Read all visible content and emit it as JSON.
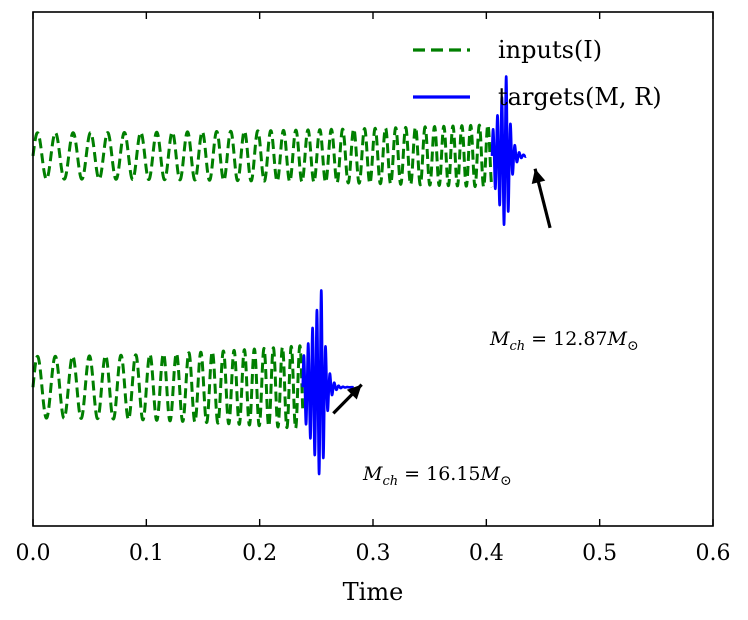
{
  "chart_data": {
    "type": "line",
    "xlabel": "Time",
    "ylabel": "",
    "xlim": [
      0.0,
      0.6
    ],
    "ylim": [
      -1.0,
      1.0
    ],
    "x_ticks": [
      "0.0",
      "0.1",
      "0.2",
      "0.3",
      "0.4",
      "0.5",
      "0.6"
    ],
    "legend": {
      "placement": "top-right",
      "entries": [
        {
          "label": "inputs(I)",
          "style": "dashed",
          "color": "#007f00"
        },
        {
          "label": "targets(M, R)",
          "style": "solid",
          "color": "#0000ff"
        }
      ]
    },
    "series": [
      {
        "name": "inputs(I)",
        "waveform": "upper",
        "color": "#007f00",
        "style": "dashed",
        "t_start": 0.0,
        "t_end": 0.405,
        "offset": 0.44,
        "amplitude": 0.09
      },
      {
        "name": "targets(M, R)",
        "waveform": "upper",
        "color": "#0000ff",
        "style": "solid",
        "t_start": 0.405,
        "t_end": 0.435,
        "peak_time": 0.418,
        "offset": 0.44,
        "amplitude": 0.32
      },
      {
        "name": "inputs(I)",
        "waveform": "lower",
        "color": "#007f00",
        "style": "dashed",
        "t_start": 0.0,
        "t_end": 0.238,
        "offset": -0.46,
        "amplitude": 0.12
      },
      {
        "name": "targets(M, R)",
        "waveform": "lower",
        "color": "#0000ff",
        "style": "solid",
        "t_start": 0.238,
        "t_end": 0.283,
        "peak_time": 0.255,
        "offset": -0.46,
        "amplitude": 0.39
      }
    ],
    "annotations": [
      {
        "text_main": "M",
        "text_sub": "ch",
        "text_eq": " = 12.87",
        "text_msym": "M",
        "text_sun": "⊙",
        "point_to": [
          0.443,
          0.39
        ],
        "text_at": [
          0.398,
          0.02
        ]
      },
      {
        "text_main": "M",
        "text_sub": "ch",
        "text_eq": " = 16.15",
        "text_msym": "M",
        "text_sun": "⊙",
        "point_to": [
          0.29,
          -0.45
        ],
        "text_at": [
          0.265,
          -0.69
        ]
      }
    ]
  }
}
